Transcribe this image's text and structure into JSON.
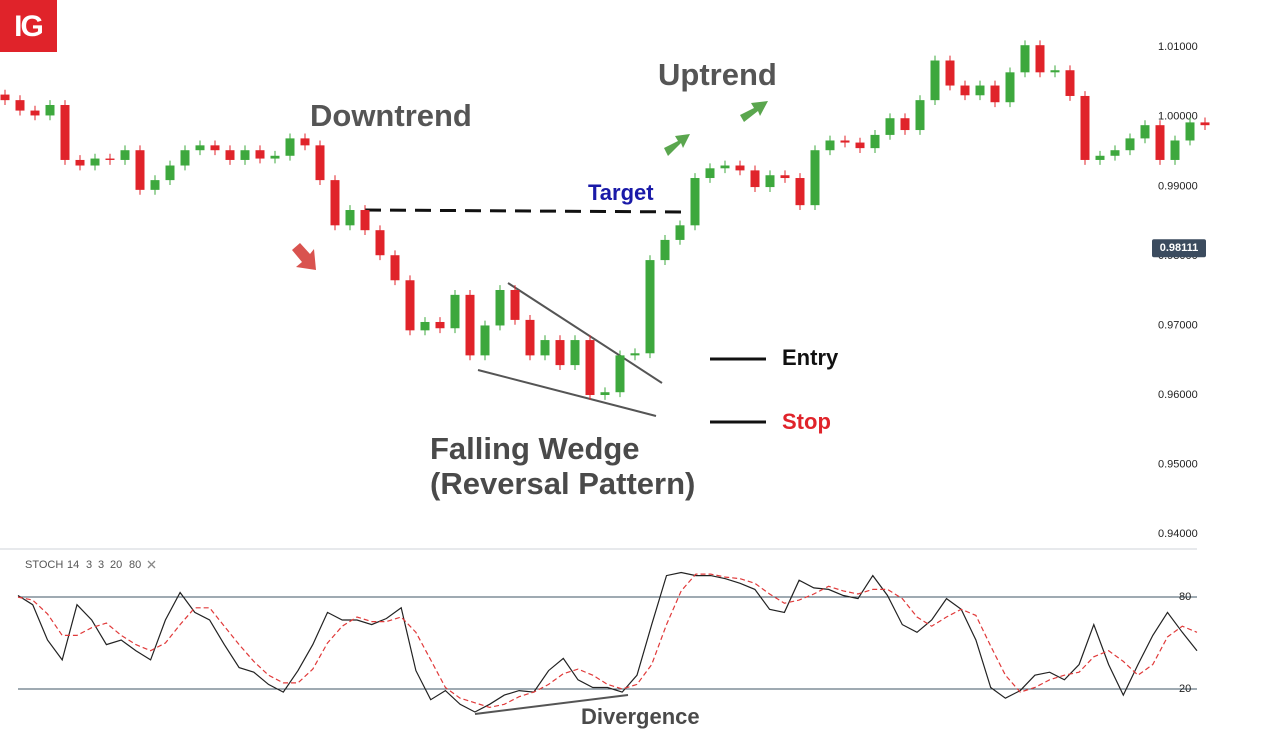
{
  "chart_data": [
    {
      "type": "candlestick",
      "logo": "IG",
      "open": [
        1.0032,
        1.0024,
        1.0009,
        1.0002,
        1.0017,
        0.9938,
        0.993,
        0.994,
        0.9938,
        0.9952,
        0.9895,
        0.9909,
        0.993,
        0.9952,
        0.9959,
        0.9952,
        0.9938,
        0.9952,
        0.994,
        0.9944,
        0.9969,
        0.9959,
        0.9909,
        0.9844,
        0.9866,
        0.9837,
        0.9801,
        0.9765,
        0.9693,
        0.9705,
        0.9696,
        0.9744,
        0.9657,
        0.97,
        0.9751,
        0.9708,
        0.9657,
        0.9679,
        0.9643,
        0.9679,
        0.96,
        0.9604,
        0.9657,
        0.966,
        0.9794,
        0.9823,
        0.9844,
        0.9912,
        0.9926,
        0.993,
        0.9923,
        0.9899,
        0.9916,
        0.9912,
        0.9873,
        0.9952,
        0.9966,
        0.9963,
        0.9955,
        0.9974,
        0.9998,
        0.9981,
        1.0024,
        1.0081,
        1.0045,
        1.0031,
        1.0045,
        1.0021,
        1.0064,
        1.0103,
        1.0064,
        1.0067,
        1.003,
        0.9938,
        0.9944,
        0.9952,
        0.9969,
        0.9988,
        0.9938,
        0.9966,
        0.9992
      ],
      "high": [
        1.0039,
        1.0031,
        1.0016,
        1.0024,
        1.0024,
        0.9945,
        0.9947,
        0.9947,
        0.9959,
        0.9959,
        0.9916,
        0.9937,
        0.9959,
        0.9966,
        0.9966,
        0.9959,
        0.9959,
        0.9959,
        0.9951,
        0.9976,
        0.9976,
        0.9966,
        0.9916,
        0.9873,
        0.9873,
        0.9844,
        0.9808,
        0.9772,
        0.9712,
        0.9712,
        0.9751,
        0.9751,
        0.9707,
        0.9758,
        0.9758,
        0.9715,
        0.9686,
        0.9686,
        0.9686,
        0.9686,
        0.9611,
        0.9664,
        0.9667,
        0.9801,
        0.983,
        0.9851,
        0.9919,
        0.9933,
        0.9937,
        0.9937,
        0.993,
        0.9923,
        0.9923,
        0.9919,
        0.9959,
        0.9973,
        0.9973,
        0.997,
        0.9981,
        1.0005,
        1.0005,
        1.0031,
        1.0088,
        1.0088,
        1.0052,
        1.0052,
        1.0052,
        1.0071,
        1.011,
        1.011,
        1.0074,
        1.0074,
        1.0037,
        0.9951,
        0.9959,
        0.9976,
        0.9995,
        0.9995,
        0.9973,
        0.9999,
        0.9999
      ],
      "low": [
        1.0017,
        1.0002,
        0.9995,
        0.9995,
        0.9931,
        0.9923,
        0.9923,
        0.9931,
        0.9931,
        0.9888,
        0.9888,
        0.9902,
        0.9923,
        0.9945,
        0.9945,
        0.9931,
        0.9931,
        0.9933,
        0.9933,
        0.9937,
        0.9952,
        0.9902,
        0.9837,
        0.9837,
        0.983,
        0.9794,
        0.9758,
        0.9686,
        0.9686,
        0.9689,
        0.9689,
        0.965,
        0.965,
        0.9693,
        0.9701,
        0.965,
        0.965,
        0.9636,
        0.9636,
        0.9593,
        0.9593,
        0.9597,
        0.965,
        0.9653,
        0.9787,
        0.9816,
        0.9837,
        0.9905,
        0.9919,
        0.9916,
        0.9892,
        0.9892,
        0.9905,
        0.9866,
        0.9866,
        0.9945,
        0.9956,
        0.9948,
        0.9948,
        0.9967,
        0.9974,
        0.9974,
        1.0017,
        1.0038,
        1.0024,
        1.0024,
        1.0014,
        1.0014,
        1.0057,
        1.0057,
        1.0057,
        1.0023,
        0.9931,
        0.9931,
        0.9937,
        0.9945,
        0.9962,
        0.9931,
        0.9931,
        0.9959,
        0.9981
      ],
      "close": [
        1.0024,
        1.0009,
        1.0002,
        1.0017,
        0.9938,
        0.993,
        0.994,
        0.9938,
        0.9952,
        0.9895,
        0.9909,
        0.993,
        0.9952,
        0.9959,
        0.9952,
        0.9938,
        0.9952,
        0.994,
        0.9944,
        0.9969,
        0.9959,
        0.9909,
        0.9844,
        0.9866,
        0.9837,
        0.9801,
        0.9765,
        0.9693,
        0.9705,
        0.9696,
        0.9744,
        0.9657,
        0.97,
        0.9751,
        0.9708,
        0.9657,
        0.9679,
        0.9643,
        0.9679,
        0.96,
        0.9604,
        0.9657,
        0.966,
        0.9794,
        0.9823,
        0.9844,
        0.9912,
        0.9926,
        0.993,
        0.9923,
        0.9899,
        0.9916,
        0.9912,
        0.9873,
        0.9952,
        0.9966,
        0.9963,
        0.9955,
        0.9974,
        0.9998,
        0.9981,
        1.0024,
        1.0081,
        1.0045,
        1.0031,
        1.0045,
        1.0021,
        1.0064,
        1.0103,
        1.0064,
        1.0067,
        1.003,
        0.9938,
        0.9944,
        0.9952,
        0.9969,
        0.9988,
        0.9938,
        0.9966,
        0.9992,
        0.9988
      ],
      "up_color": "#3da83d",
      "down_color": "#e0232a",
      "ylim": [
        0.938,
        1.0168
      ],
      "yticks": [
        {
          "value": 0.94,
          "label": "0.94000"
        },
        {
          "value": 0.95,
          "label": "0.95000"
        },
        {
          "value": 0.96,
          "label": "0.96000"
        },
        {
          "value": 0.97,
          "label": "0.97000"
        },
        {
          "value": 0.98,
          "label": "0.98000"
        },
        {
          "value": 0.99,
          "label": "0.99000"
        },
        {
          "value": 1.0,
          "label": "1.00000"
        },
        {
          "value": 1.01,
          "label": "1.01000"
        }
      ],
      "grid": false,
      "last_price": 0.98111,
      "annotations": {
        "downtrend": "Downtrend",
        "uptrend": "Uptrend",
        "target": "Target",
        "entry": "Entry",
        "stop": "Stop",
        "pattern": "Falling Wedge",
        "pattern_note": "(Reversal Pattern)"
      }
    },
    {
      "type": "line",
      "label": "STOCH",
      "params": [
        14,
        3,
        3,
        20,
        80
      ],
      "series": [
        {
          "color": "#222222",
          "dash": false,
          "values": [
            81,
            75,
            52,
            39,
            75,
            65,
            49,
            52,
            45,
            39,
            65,
            83,
            70,
            65,
            49,
            34,
            31,
            23,
            18,
            32,
            49,
            70,
            65,
            65,
            62,
            66,
            73,
            32,
            13,
            19,
            10,
            5,
            10,
            16,
            19,
            18,
            32,
            40,
            26,
            21,
            21,
            18,
            29,
            62,
            94,
            96,
            94,
            94,
            92,
            89,
            85,
            72,
            70,
            91,
            86,
            85,
            81,
            79,
            94,
            81,
            62,
            57,
            65,
            79,
            72,
            52,
            21,
            14,
            19,
            29,
            31,
            26,
            36,
            62,
            36,
            16,
            36,
            55,
            70,
            57,
            45
          ]
        },
        {
          "color": "#e03a3a",
          "dash": true,
          "values": [
            80,
            78,
            69,
            55,
            55,
            60,
            63,
            55,
            49,
            45,
            50,
            62,
            73,
            73,
            61,
            49,
            38,
            29,
            24,
            24,
            33,
            50,
            61,
            67,
            64,
            64,
            67,
            57,
            39,
            21,
            14,
            11,
            8,
            10,
            15,
            18,
            23,
            30,
            33,
            29,
            23,
            20,
            23,
            36,
            62,
            84,
            95,
            95,
            93,
            92,
            89,
            82,
            76,
            78,
            82,
            87,
            84,
            82,
            85,
            85,
            79,
            67,
            61,
            67,
            72,
            68,
            48,
            29,
            18,
            21,
            26,
            29,
            31,
            41,
            45,
            38,
            29,
            36,
            54,
            61,
            57
          ]
        }
      ],
      "ylim": [
        -10,
        110.7
      ],
      "yticks": [
        80,
        20
      ],
      "grid": true,
      "annotation": "Divergence"
    }
  ]
}
